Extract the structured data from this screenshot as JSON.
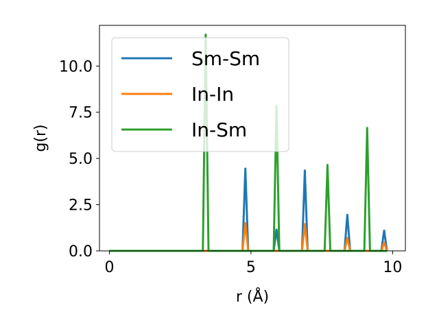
{
  "chart_data": {
    "type": "line",
    "xlabel": "r (Å)",
    "ylabel": "g(r)",
    "xlim": [
      -0.35,
      10.45
    ],
    "ylim": [
      0,
      12.2
    ],
    "xticks": [
      0,
      5,
      10
    ],
    "xtick_labels": [
      "0",
      "5",
      "10"
    ],
    "yticks": [
      0.0,
      2.5,
      5.0,
      7.5,
      10.0
    ],
    "ytick_labels": [
      "0.0",
      "2.5",
      "5.0",
      "7.5",
      "10.0"
    ],
    "grid": false,
    "legend_position": "top-left",
    "series": [
      {
        "name": "Sm-Sm",
        "color": "#1f77b4",
        "x": [
          0,
          4.7,
          4.8,
          4.9,
          5.8,
          5.9,
          6.0,
          6.8,
          6.9,
          7.0,
          8.3,
          8.4,
          8.5,
          9.6,
          9.7,
          9.8
        ],
        "y": [
          0,
          0,
          4.45,
          0,
          0,
          1.15,
          0,
          0,
          4.35,
          0,
          0,
          1.95,
          0,
          0,
          1.1,
          0
        ]
      },
      {
        "name": "In-In",
        "color": "#ff7f0e",
        "x": [
          0,
          4.7,
          4.8,
          4.9,
          6.8,
          6.9,
          7.0,
          8.3,
          8.4,
          8.5,
          9.6,
          9.7,
          9.8
        ],
        "y": [
          0,
          0,
          1.5,
          0,
          0,
          1.45,
          0,
          0,
          0.7,
          0,
          0,
          0.45,
          0
        ]
      },
      {
        "name": "In-Sm",
        "color": "#2ca02c",
        "x": [
          0,
          3.3,
          3.4,
          3.5,
          5.8,
          5.9,
          6.0,
          7.6,
          7.7,
          7.8,
          9.0,
          9.1,
          9.2,
          9.8
        ],
        "y": [
          0,
          0,
          11.7,
          0,
          0,
          7.85,
          0,
          0,
          4.65,
          0,
          0,
          6.65,
          0,
          0
        ]
      }
    ]
  }
}
